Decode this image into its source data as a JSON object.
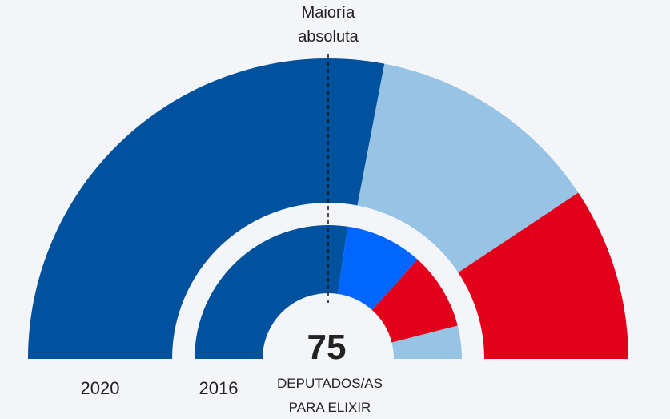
{
  "chart_data": {
    "type": "parliament-semicircle",
    "total_seats": 75,
    "majority_label_line1": "Maioría",
    "majority_label_line2": "absoluta",
    "majority_seats": 38,
    "center_value": "75",
    "center_label_line1": "DEPUTADOS/AS",
    "center_label_line2": "PARA ELIXIR",
    "rings": [
      {
        "year": "2020",
        "segments": [
          {
            "seats": 42,
            "color": "#00529f"
          },
          {
            "seats": 19,
            "color": "#97c4e5"
          },
          {
            "seats": 14,
            "color": "#e2001a"
          }
        ]
      },
      {
        "year": "2016",
        "segments": [
          {
            "seats": 41,
            "color": "#00529f"
          },
          {
            "seats": 14,
            "color": "#0066ff"
          },
          {
            "seats": 14,
            "color": "#e2001a"
          },
          {
            "seats": 6,
            "color": "#97c4e5"
          }
        ]
      }
    ]
  }
}
